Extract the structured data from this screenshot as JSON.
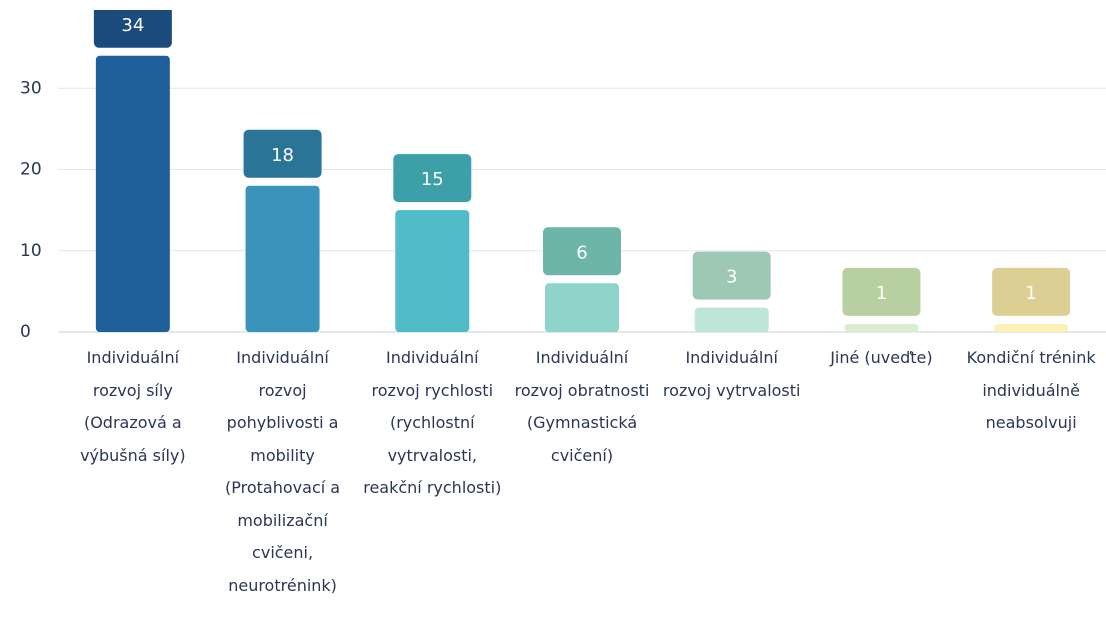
{
  "chart_data": {
    "type": "bar",
    "categories": [
      "Individuální rozvoj síly (Odrazová a výbušná síly)",
      "Individuální rozvoj pohyblivosti a mobility (Protahovací a mobilizační cvičeni, neurotrénink)",
      "Individuální rozvoj rychlosti (rychlostní vytrvalosti, reakční rychlosti)",
      "Individuální rozvoj obratnosti (Gymnastická cvičení)",
      "Individuální rozvoj vytrvalosti",
      "Jiné (uveďte)",
      "Kondiční trénink individuálně neabsolvuji"
    ],
    "values": [
      34,
      18,
      15,
      6,
      3,
      1,
      1
    ],
    "colors": [
      "#1f5f99",
      "#3a93bb",
      "#50bcc7",
      "#8fd4cb",
      "#bee6d6",
      "#d9edcf",
      "#fcefb8"
    ],
    "value_label_colors": [
      "#1b4a7d",
      "#2a7497",
      "#3d9fa7",
      "#6db4a9",
      "#9cc8b4",
      "#b8cfa2",
      "#dccf93"
    ],
    "ylim": [
      0,
      40
    ],
    "yticks": [
      0,
      10,
      20,
      30
    ],
    "grid": true
  }
}
